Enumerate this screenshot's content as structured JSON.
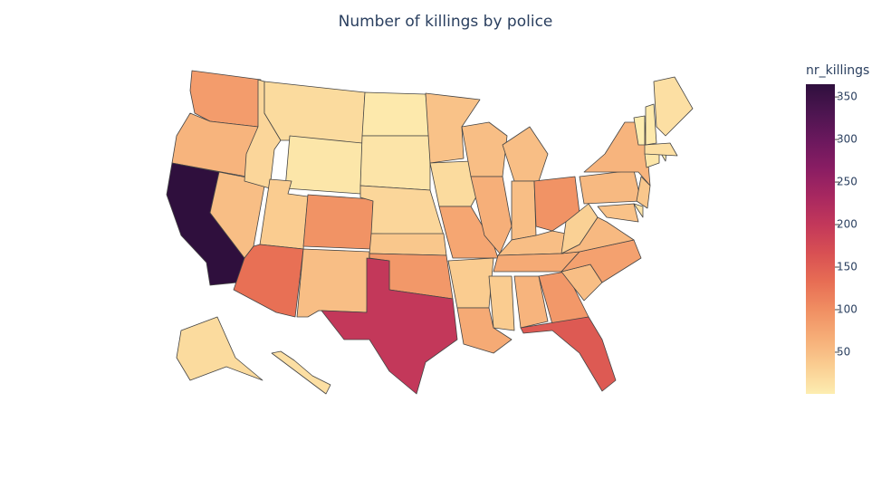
{
  "chart_data": {
    "type": "choropleth",
    "title": "Number of killings by police",
    "colorbar_title": "nr_killings",
    "locations": [
      "WA",
      "OR",
      "CA",
      "NV",
      "ID",
      "MT",
      "WY",
      "UT",
      "AZ",
      "CO",
      "NM",
      "ND",
      "SD",
      "NE",
      "KS",
      "OK",
      "TX",
      "MN",
      "IA",
      "MO",
      "AR",
      "LA",
      "WI",
      "IL",
      "MI",
      "IN",
      "OH",
      "KY",
      "TN",
      "MS",
      "AL",
      "GA",
      "FL",
      "SC",
      "NC",
      "VA",
      "WV",
      "PA",
      "NY",
      "NJ",
      "DE",
      "MD",
      "CT",
      "RI",
      "MA",
      "VT",
      "NH",
      "ME",
      "AK",
      "HI"
    ],
    "values": [
      85,
      60,
      365,
      50,
      25,
      20,
      8,
      35,
      130,
      95,
      50,
      5,
      10,
      25,
      40,
      90,
      200,
      45,
      20,
      75,
      35,
      70,
      50,
      65,
      50,
      50,
      95,
      50,
      70,
      35,
      60,
      90,
      155,
      50,
      80,
      55,
      30,
      55,
      60,
      40,
      10,
      45,
      8,
      3,
      15,
      1,
      5,
      15,
      20,
      15
    ],
    "colorscale": [
      "#fdedb0",
      "#facd91",
      "#f6ad77",
      "#f08e62",
      "#e76d54",
      "#d85053",
      "#c3385a",
      "#a82860",
      "#8a1d63",
      "#6b185d",
      "#4c1550",
      "#2f0f3d"
    ],
    "zlim": [
      1,
      365
    ],
    "zticks": [
      50,
      100,
      150,
      200,
      250,
      300,
      350
    ]
  }
}
